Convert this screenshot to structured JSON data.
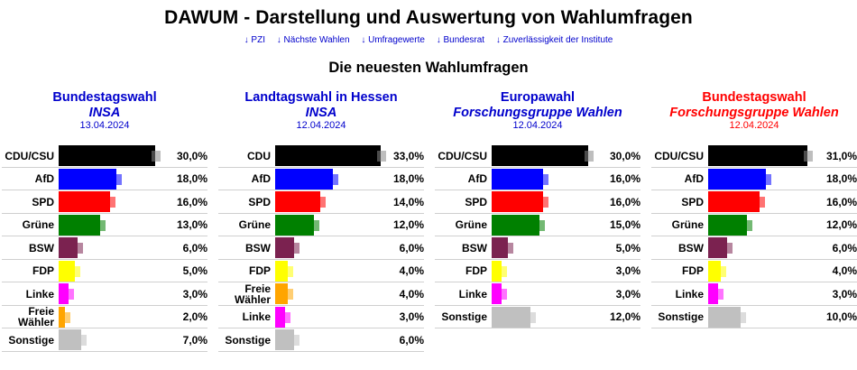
{
  "header": {
    "title": "DAWUM - Darstellung und Auswertung von Wahlumfragen",
    "nav": [
      "↓ PZI",
      "↓ Nächste Wahlen",
      "↓ Umfragewerte",
      "↓ Bundesrat",
      "↓ Zuverlässigkeit der Institute"
    ]
  },
  "section_title": "Die neuesten Wahlumfragen",
  "colors": {
    "CDU/CSU": "#000000",
    "CDU": "#000000",
    "AfD": "#0000ff",
    "SPD": "#ff0000",
    "Grüne": "#008000",
    "BSW": "#7b2250",
    "FDP": "#ffff00",
    "Linke": "#ff00ff",
    "Freie Wähler": "#ffa500",
    "Sonstige": "#c0c0c0",
    "link": "#0000cc",
    "title_blue": "#0000cc",
    "title_red": "#ff0000"
  },
  "panels": [
    {
      "election": "Bundestagswahl",
      "institute": "INSA",
      "date": "13.04.2024",
      "title_color": "#0000cc",
      "rows": [
        {
          "party": "CDU/CSU",
          "value": 30.0,
          "label": "30,0%"
        },
        {
          "party": "AfD",
          "value": 18.0,
          "label": "18,0%"
        },
        {
          "party": "SPD",
          "value": 16.0,
          "label": "16,0%"
        },
        {
          "party": "Grüne",
          "value": 13.0,
          "label": "13,0%"
        },
        {
          "party": "BSW",
          "value": 6.0,
          "label": "6,0%"
        },
        {
          "party": "FDP",
          "value": 5.0,
          "label": "5,0%"
        },
        {
          "party": "Linke",
          "value": 3.0,
          "label": "3,0%"
        },
        {
          "party": "Freie Wähler",
          "value": 2.0,
          "label": "2,0%"
        },
        {
          "party": "Sonstige",
          "value": 7.0,
          "label": "7,0%"
        }
      ]
    },
    {
      "election": "Landtagswahl in Hessen",
      "institute": "INSA",
      "date": "12.04.2024",
      "title_color": "#0000cc",
      "rows": [
        {
          "party": "CDU",
          "value": 33.0,
          "label": "33,0%"
        },
        {
          "party": "AfD",
          "value": 18.0,
          "label": "18,0%"
        },
        {
          "party": "SPD",
          "value": 14.0,
          "label": "14,0%"
        },
        {
          "party": "Grüne",
          "value": 12.0,
          "label": "12,0%"
        },
        {
          "party": "BSW",
          "value": 6.0,
          "label": "6,0%"
        },
        {
          "party": "FDP",
          "value": 4.0,
          "label": "4,0%"
        },
        {
          "party": "Freie Wähler",
          "value": 4.0,
          "label": "4,0%"
        },
        {
          "party": "Linke",
          "value": 3.0,
          "label": "3,0%"
        },
        {
          "party": "Sonstige",
          "value": 6.0,
          "label": "6,0%"
        }
      ]
    },
    {
      "election": "Europawahl",
      "institute": "Forschungsgruppe Wahlen",
      "date": "12.04.2024",
      "title_color": "#0000cc",
      "rows": [
        {
          "party": "CDU/CSU",
          "value": 30.0,
          "label": "30,0%"
        },
        {
          "party": "AfD",
          "value": 16.0,
          "label": "16,0%"
        },
        {
          "party": "SPD",
          "value": 16.0,
          "label": "16,0%"
        },
        {
          "party": "Grüne",
          "value": 15.0,
          "label": "15,0%"
        },
        {
          "party": "BSW",
          "value": 5.0,
          "label": "5,0%"
        },
        {
          "party": "FDP",
          "value": 3.0,
          "label": "3,0%"
        },
        {
          "party": "Linke",
          "value": 3.0,
          "label": "3,0%"
        },
        {
          "party": "Sonstige",
          "value": 12.0,
          "label": "12,0%"
        }
      ]
    },
    {
      "election": "Bundestagswahl",
      "institute": "Forschungsgruppe Wahlen",
      "date": "12.04.2024",
      "title_color": "#ff0000",
      "rows": [
        {
          "party": "CDU/CSU",
          "value": 31.0,
          "label": "31,0%"
        },
        {
          "party": "AfD",
          "value": 18.0,
          "label": "18,0%"
        },
        {
          "party": "SPD",
          "value": 16.0,
          "label": "16,0%"
        },
        {
          "party": "Grüne",
          "value": 12.0,
          "label": "12,0%"
        },
        {
          "party": "BSW",
          "value": 6.0,
          "label": "6,0%"
        },
        {
          "party": "FDP",
          "value": 4.0,
          "label": "4,0%"
        },
        {
          "party": "Linke",
          "value": 3.0,
          "label": "3,0%"
        },
        {
          "party": "Sonstige",
          "value": 10.0,
          "label": "10,0%"
        }
      ]
    }
  ]
}
